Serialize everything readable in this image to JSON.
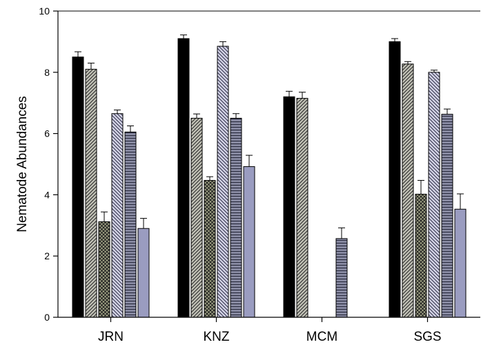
{
  "chart_data": {
    "type": "bar",
    "title": "",
    "xlabel": "",
    "ylabel": "Nematode Abundances",
    "ylim": [
      0,
      10
    ],
    "yticks": [
      0,
      2,
      4,
      6,
      8,
      10
    ],
    "categories": [
      "JRN",
      "KNZ",
      "MCM",
      "SGS"
    ],
    "grid": false,
    "legend": "none",
    "series": [
      {
        "style": "solid-black",
        "values": [
          8.5,
          9.1,
          7.2,
          9.0
        ],
        "errors": [
          0.17,
          0.12,
          0.18,
          0.1
        ]
      },
      {
        "style": "gray-diagonal",
        "values": [
          8.1,
          6.5,
          7.15,
          8.27
        ],
        "errors": [
          0.2,
          0.14,
          0.2,
          0.08
        ]
      },
      {
        "style": "dark-crosshatch",
        "values": [
          3.12,
          4.47,
          null,
          4.02
        ],
        "errors": [
          0.32,
          0.12,
          null,
          0.45
        ]
      },
      {
        "style": "lavender-diagonal",
        "values": [
          6.65,
          8.85,
          null,
          8.0
        ],
        "errors": [
          0.12,
          0.15,
          null,
          0.07
        ]
      },
      {
        "style": "slate-horizontal",
        "values": [
          6.05,
          6.5,
          2.57,
          6.63
        ],
        "errors": [
          0.2,
          0.15,
          0.35,
          0.17
        ]
      },
      {
        "style": "solid-periwinkle",
        "values": [
          2.9,
          4.92,
          null,
          3.53
        ],
        "errors": [
          0.33,
          0.37,
          null,
          0.5
        ]
      }
    ],
    "colors": {
      "solid-black": "#000000",
      "gray-diagonal-bg": "#c4c4b8",
      "gray-diagonal-line": "#3a3a3a",
      "dark-crosshatch-bg": "#a2a486",
      "dark-crosshatch-line": "#1e1e1e",
      "lavender-diagonal-bg": "#d6d6e8",
      "lavender-diagonal-line": "#44445e",
      "slate-horizontal-bg": "#8a8ca4",
      "slate-horizontal-line": "#26283a",
      "solid-periwinkle": "#9a9cc0"
    }
  }
}
